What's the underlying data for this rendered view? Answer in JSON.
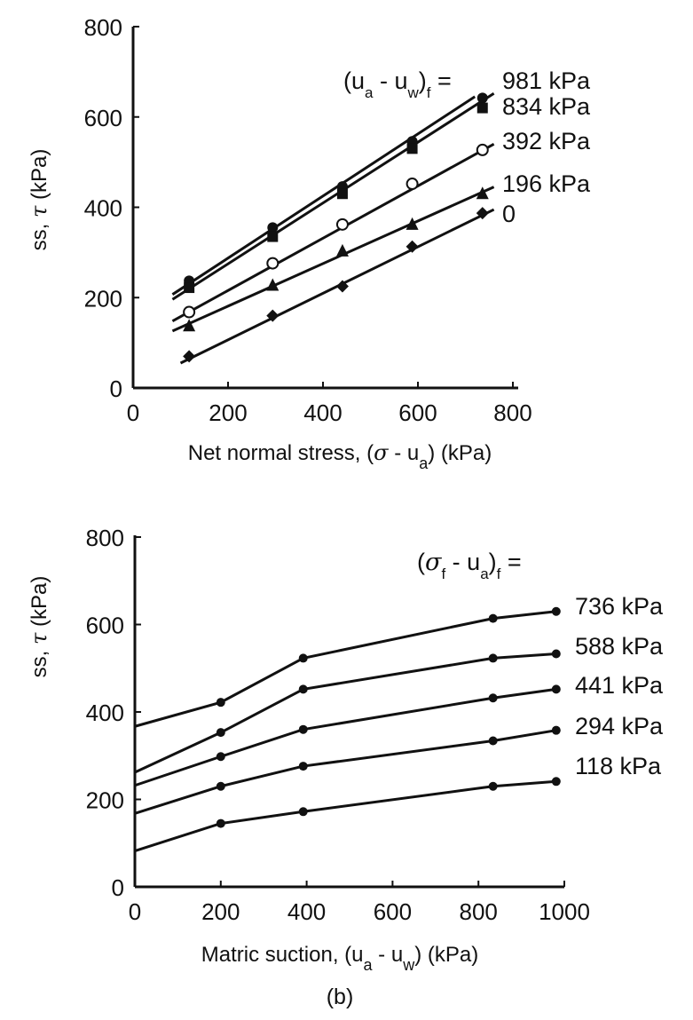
{
  "chart_data": [
    {
      "type": "line",
      "title": "",
      "xlabel_prefix": "Net normal stress, (",
      "xlabel_sigma": "σ",
      "xlabel_mid": " - u",
      "xlabel_sub": "a",
      "xlabel_suffix": ") (kPa)",
      "ylabel_prefix": "ss, ",
      "ylabel_tau": "τ",
      "ylabel_suffix": " (kPa)",
      "xlim": [
        0,
        800
      ],
      "ylim": [
        0,
        800
      ],
      "xticks": [
        "0",
        "200",
        "400",
        "600",
        "800"
      ],
      "yticks": [
        "0",
        "200",
        "400",
        "600",
        "800"
      ],
      "legend_header": {
        "pre": "(u",
        "sub1": "a",
        "mid": " - u",
        "sub2": "w",
        "post": ")",
        "sub3": "f",
        "eq": " ="
      },
      "series": [
        {
          "name": "981 kPa",
          "marker": "filled-circle",
          "x": [
            118,
            294,
            441,
            588,
            736
          ],
          "y": [
            237,
            355,
            446,
            546,
            642
          ],
          "fit": {
            "x": [
              83,
              720
            ],
            "y": [
              207,
              645
            ]
          }
        },
        {
          "name": "834 kPa",
          "marker": "filled-square",
          "x": [
            118,
            294,
            441,
            588,
            736
          ],
          "y": [
            222,
            335,
            430,
            530,
            620
          ],
          "fit": {
            "x": [
              83,
              760
            ],
            "y": [
              196,
              652
            ]
          }
        },
        {
          "name": "392 kPa",
          "marker": "open-circle",
          "x": [
            118,
            294,
            441,
            588,
            736
          ],
          "y": [
            168,
            276,
            362,
            452,
            527
          ],
          "fit": {
            "x": [
              83,
              760
            ],
            "y": [
              148,
              540
            ]
          }
        },
        {
          "name": "196 kPa",
          "marker": "filled-triangle",
          "x": [
            118,
            294,
            441,
            588,
            736
          ],
          "y": [
            137,
            227,
            303,
            362,
            430
          ],
          "fit": {
            "x": [
              83,
              760
            ],
            "y": [
              126,
              445
            ]
          }
        },
        {
          "name": "0",
          "marker": "filled-diamond",
          "x": [
            118,
            294,
            441,
            588,
            736
          ],
          "y": [
            70,
            160,
            225,
            313,
            387
          ],
          "fit": {
            "x": [
              100,
              760
            ],
            "y": [
              55,
              395
            ]
          }
        }
      ]
    },
    {
      "type": "line",
      "title": "",
      "xlabel_prefix": "Matric suction, (u",
      "xlabel_sub1": "a",
      "xlabel_mid": " - u",
      "xlabel_sub2": "w",
      "xlabel_suffix": ") (kPa)",
      "ylabel_prefix": "ss, ",
      "ylabel_tau": "τ",
      "ylabel_suffix": " (kPa)",
      "caption": "(b)",
      "xlim": [
        0,
        1000
      ],
      "ylim": [
        0,
        800
      ],
      "xticks": [
        "0",
        "200",
        "400",
        "600",
        "800",
        "1000"
      ],
      "yticks": [
        "0",
        "200",
        "400",
        "600",
        "800"
      ],
      "legend_header": {
        "pre": "(",
        "sigma": "σ",
        "sub1": "f",
        "mid": " - u",
        "sub2": "a",
        "post": ")",
        "sub3": "f",
        "eq": " ="
      },
      "series": [
        {
          "name": "736 kPa",
          "x": [
            0,
            200,
            392,
            834,
            981
          ],
          "y": [
            367,
            422,
            523,
            614,
            630
          ]
        },
        {
          "name": "588 kPa",
          "x": [
            0,
            200,
            392,
            834,
            981
          ],
          "y": [
            262,
            353,
            452,
            523,
            533
          ]
        },
        {
          "name": "441 kPa",
          "x": [
            0,
            200,
            392,
            834,
            981
          ],
          "y": [
            232,
            298,
            360,
            432,
            452
          ]
        },
        {
          "name": "294 kPa",
          "x": [
            0,
            200,
            392,
            834,
            981
          ],
          "y": [
            168,
            230,
            276,
            334,
            358
          ]
        },
        {
          "name": "118 kPa",
          "x": [
            0,
            200,
            392,
            834,
            981
          ],
          "y": [
            82,
            145,
            172,
            230,
            241
          ]
        }
      ]
    }
  ]
}
